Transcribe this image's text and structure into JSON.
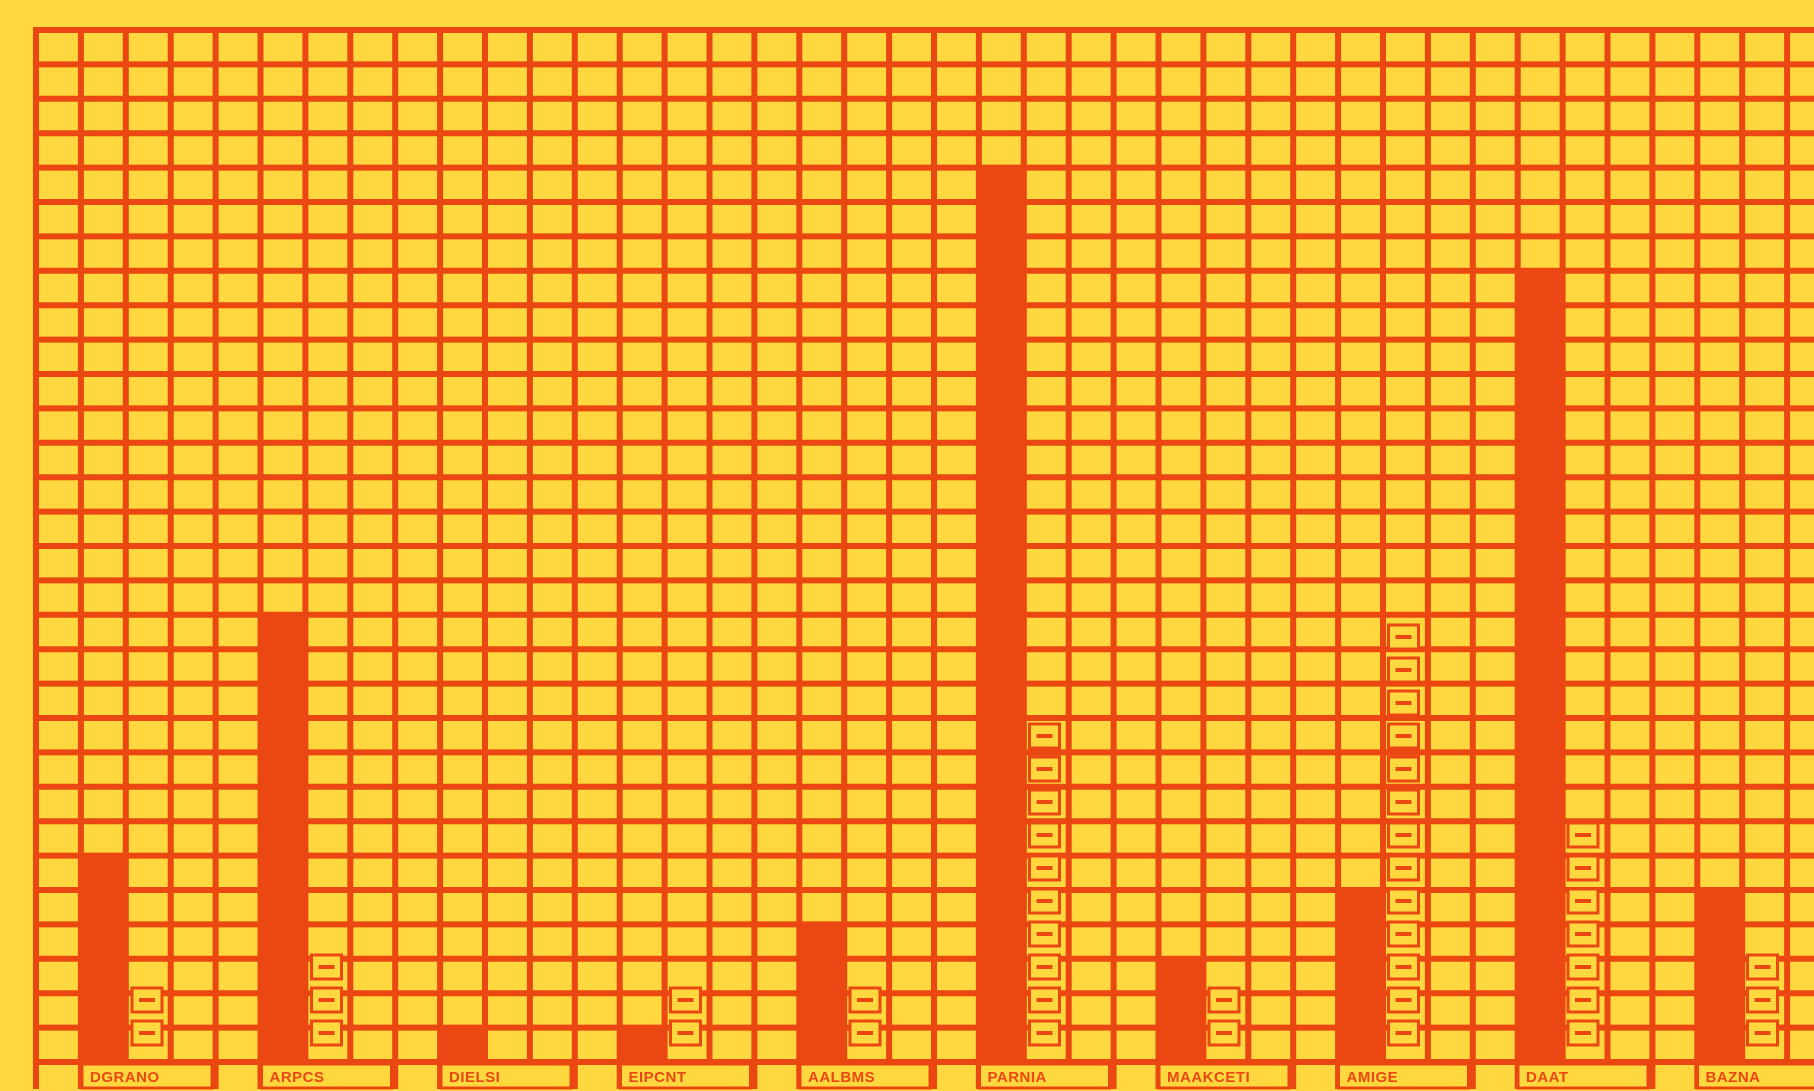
{
  "colors": {
    "background": "#FFD83F",
    "ink": "#EA4712"
  },
  "chart_data": {
    "type": "bar",
    "title": "",
    "xlabel": "",
    "ylabel": "",
    "categories": [
      "DGRANO",
      "ARPCS",
      "DIELSI",
      "EIPCNT",
      "AALBMS",
      "PARNIA",
      "MAAKCETI",
      "AMIGE",
      "DAAT",
      "BAZNA"
    ],
    "values": [
      6,
      13,
      1,
      1,
      4,
      26,
      3,
      5,
      23,
      5
    ],
    "marker_counts": [
      2,
      3,
      0,
      2,
      2,
      10,
      2,
      13,
      7,
      3
    ],
    "ylim": [
      0,
      30
    ],
    "grid": true,
    "legend": "none"
  }
}
